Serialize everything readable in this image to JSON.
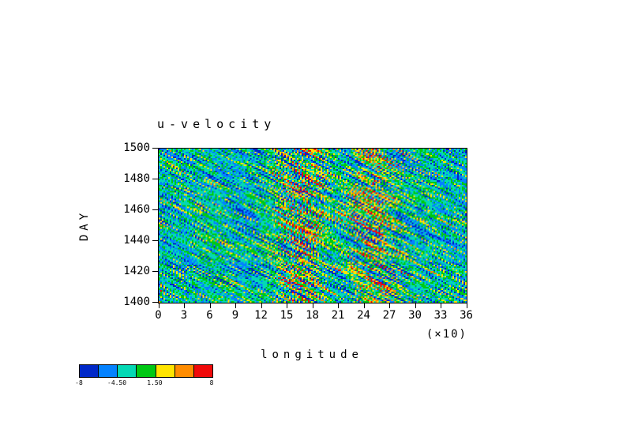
{
  "chart_data": {
    "type": "heatmap",
    "title": "u-velocity",
    "xlabel": "longitude",
    "xlabel_unit": "(×10)",
    "ylabel": "DAY",
    "x_ticks": [
      "0",
      "3",
      "6",
      "9",
      "12",
      "15",
      "18",
      "21",
      "24",
      "27",
      "30",
      "33",
      "36"
    ],
    "x_range": [
      0,
      36
    ],
    "y_ticks": [
      "1500",
      "1480",
      "1460",
      "1440",
      "1420",
      "1400"
    ],
    "y_range": [
      1400,
      1500
    ],
    "grid": false,
    "legend_position": "colorbar-bottom-left",
    "field_description": "Zonal velocity Hovmoeller diagram: noisy diagonal streaks, predominantly negative (blue/cyan) background with strong positive (yellow-orange-red) bands centered near longitude 15-18 and 24-27, spanning days 1400-1500.",
    "colorbar": {
      "colors": [
        "#0028c8",
        "#0482ff",
        "#04d8b4",
        "#00c814",
        "#ffe400",
        "#ff8c00",
        "#f00a0a"
      ],
      "thresholds": [
        -7.5,
        -4.5,
        -1.5,
        1.5,
        4.5,
        7.5
      ],
      "labels": [
        {
          "text": "-8",
          "pos": 0
        },
        {
          "text": "-4.50",
          "pos": 0.286
        },
        {
          "text": "1.50",
          "pos": 0.571
        },
        {
          "text": "8",
          "pos": 1
        }
      ]
    },
    "render": {
      "seed": 7,
      "nx": 196,
      "ny": 98,
      "streak_dx": 2,
      "streak_half": 3,
      "scale": 15,
      "bias": -3,
      "bands": [
        {
          "center": 16.5,
          "sigma2": 7,
          "var_gain": 1.25,
          "shift": 2.8
        },
        {
          "center": 25.2,
          "sigma2": 9,
          "var_gain": 1.0,
          "shift": 2.4
        }
      ]
    }
  }
}
